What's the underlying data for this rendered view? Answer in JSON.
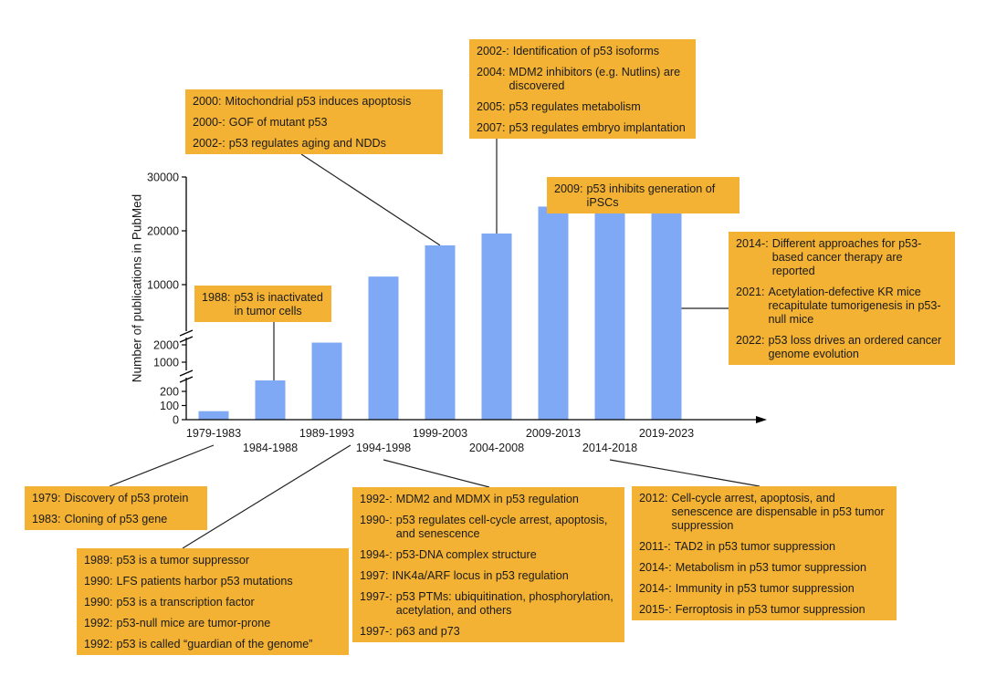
{
  "colors": {
    "bar": "#7fa8f5",
    "annotation_box": "#f3b233",
    "axis": "#000000"
  },
  "chart_data": {
    "type": "bar",
    "ylabel": "Number of publications in PubMed",
    "xlabel": "",
    "title": "",
    "y_axis": "broken",
    "yticks": [
      0,
      100,
      200,
      1000,
      2000,
      10000,
      20000,
      30000
    ],
    "categories": [
      "1979-1983",
      "1984-1988",
      "1989-1993",
      "1994-1998",
      "1999-2003",
      "2004-2008",
      "2009-2013",
      "2014-2018",
      "2019-2023"
    ],
    "values": [
      60,
      500,
      2300,
      11500,
      17300,
      19500,
      24500,
      27300,
      27800
    ],
    "grid": false,
    "legend": "none"
  },
  "annotations": [
    {
      "id": "box-1979",
      "attach_category": 0,
      "events": [
        {
          "year": "1979:",
          "text": "Discovery of p53 protein"
        },
        {
          "year": "1983:",
          "text": "Cloning of p53 gene"
        }
      ]
    },
    {
      "id": "box-1988",
      "attach_category": 1,
      "events": [
        {
          "year": "1988:",
          "text": "p53 is inactivated in tumor cells"
        }
      ]
    },
    {
      "id": "box-1989",
      "attach_category": 2,
      "events": [
        {
          "year": "1989:",
          "text": "p53 is a tumor suppressor"
        },
        {
          "year": "1990:",
          "text": "LFS patients harbor p53 mutations"
        },
        {
          "year": "1990:",
          "text": "p53 is a transcription factor"
        },
        {
          "year": "1992:",
          "text": "p53-null mice are tumor-prone"
        },
        {
          "year": "1992:",
          "text": "p53 is called “guardian of the genome”"
        }
      ]
    },
    {
      "id": "box-1992",
      "attach_category": 3,
      "events": [
        {
          "year": "1992-:",
          "text": "MDM2 and MDMX in p53 regulation"
        },
        {
          "year": "1990-:",
          "text": "p53 regulates cell-cycle arrest, apoptosis, and senescence"
        },
        {
          "year": "1994-:",
          "text": "p53-DNA complex structure"
        },
        {
          "year": "1997:",
          "text": "INK4a/ARF locus in p53 regulation"
        },
        {
          "year": "1997-:",
          "text": "p53 PTMs: ubiquitination, phosphorylation, acetylation, and others"
        },
        {
          "year": "1997-:",
          "text": "p63 and p73"
        }
      ]
    },
    {
      "id": "box-2000",
      "attach_category": 4,
      "events": [
        {
          "year": "2000:",
          "text": "Mitochondrial p53 induces apoptosis"
        },
        {
          "year": "2000-:",
          "text": "GOF of mutant p53"
        },
        {
          "year": "2002-:",
          "text": "p53 regulates aging and NDDs"
        }
      ]
    },
    {
      "id": "box-2002",
      "attach_category": 5,
      "events": [
        {
          "year": "2002-:",
          "text": "Identification of p53 isoforms"
        },
        {
          "year": "2004:",
          "text": "MDM2 inhibitors (e.g. Nutlins) are discovered"
        },
        {
          "year": "2005:",
          "text": "p53 regulates metabolism"
        },
        {
          "year": "2007:",
          "text": "p53 regulates embryo implantation"
        }
      ]
    },
    {
      "id": "box-2009",
      "attach_category": 6,
      "events": [
        {
          "year": "2009:",
          "text": "p53 inhibits generation of iPSCs"
        }
      ]
    },
    {
      "id": "box-2012",
      "attach_category": 7,
      "events": [
        {
          "year": "2012:",
          "text": "Cell-cycle arrest, apoptosis, and senescence are dispensable in p53 tumor suppression"
        },
        {
          "year": "2011-:",
          "text": "TAD2 in p53 tumor suppression"
        },
        {
          "year": "2014-:",
          "text": "Metabolism in p53 tumor suppression"
        },
        {
          "year": "2014-:",
          "text": "Immunity in p53 tumor suppression"
        },
        {
          "year": "2015-:",
          "text": "Ferroptosis in p53 tumor suppression"
        }
      ]
    },
    {
      "id": "box-2014",
      "attach_category": 8,
      "events": [
        {
          "year": "2014-:",
          "text": "Different approaches for p53-based cancer therapy are reported"
        },
        {
          "year": "2021:",
          "text": "Acetylation-defective KR mice recapitulate tumorigenesis in p53-null mice"
        },
        {
          "year": "2022:",
          "text": "p53 loss drives an ordered cancer genome evolution"
        }
      ]
    }
  ]
}
